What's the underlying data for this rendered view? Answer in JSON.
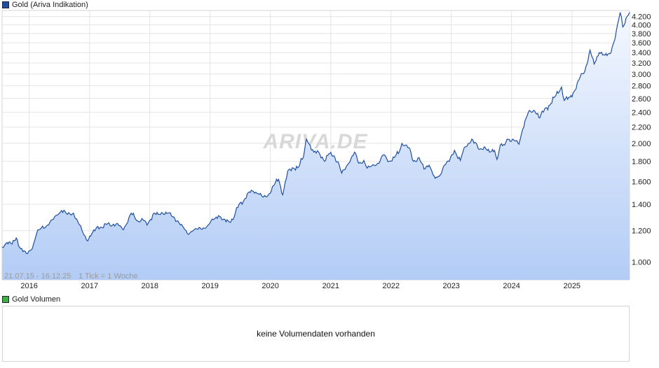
{
  "legend": {
    "price_label": "Gold (Ariva Indikation)",
    "price_color": "#1f4fa0",
    "volume_label": "Gold Volumen",
    "volume_color": "#3cb043"
  },
  "watermark": "ARIVA.DE",
  "range_info": "21.07.15 - 16.12.25",
  "tick_info": "1 Tick = 1 Woche",
  "volume_panel": {
    "message": "keine Volumendaten vorhanden"
  },
  "chart_data": {
    "type": "area",
    "scale": "log",
    "grid": true,
    "x_range": [
      "2015-07-21",
      "2025-12-16"
    ],
    "y_range": [
      0.9,
      4.35
    ],
    "y_ticks": [
      1.0,
      1.2,
      1.4,
      1.6,
      1.8,
      2.0,
      2.2,
      2.4,
      2.6,
      2.8,
      3.0,
      3.2,
      3.4,
      3.6,
      3.8,
      4.0,
      4.2
    ],
    "y_tick_labels": [
      "1.000",
      "1.200",
      "1.400",
      "1.600",
      "1.800",
      "2.000",
      "2.200",
      "2.400",
      "2.600",
      "2.800",
      "3.000",
      "3.200",
      "3.400",
      "3.600",
      "3.800",
      "4.000",
      "4.200"
    ],
    "x_ticks": [
      "2016-01-01",
      "2017-01-01",
      "2018-01-01",
      "2019-01-01",
      "2020-01-01",
      "2021-01-01",
      "2022-01-01",
      "2023-01-01",
      "2024-01-01",
      "2025-01-01"
    ],
    "x_tick_labels": [
      "2016",
      "2017",
      "2018",
      "2019",
      "2020",
      "2021",
      "2022",
      "2023",
      "2024",
      "2025"
    ],
    "series": [
      {
        "line_color": "#1f4fa0",
        "fill_top": "#f4f8ff",
        "fill_bottom": "#b3ccf5",
        "points": [
          [
            "2015-07-21",
            1.09
          ],
          [
            "2015-08-20",
            1.12
          ],
          [
            "2015-09-20",
            1.11
          ],
          [
            "2015-10-15",
            1.15
          ],
          [
            "2015-11-10",
            1.08
          ],
          [
            "2015-12-15",
            1.05
          ],
          [
            "2016-01-20",
            1.08
          ],
          [
            "2016-02-15",
            1.18
          ],
          [
            "2016-03-15",
            1.22
          ],
          [
            "2016-04-20",
            1.24
          ],
          [
            "2016-05-20",
            1.28
          ],
          [
            "2016-06-25",
            1.32
          ],
          [
            "2016-07-15",
            1.35
          ],
          [
            "2016-08-20",
            1.32
          ],
          [
            "2016-09-25",
            1.33
          ],
          [
            "2016-10-20",
            1.27
          ],
          [
            "2016-11-20",
            1.19
          ],
          [
            "2016-12-20",
            1.13
          ],
          [
            "2017-01-20",
            1.19
          ],
          [
            "2017-02-20",
            1.23
          ],
          [
            "2017-03-20",
            1.22
          ],
          [
            "2017-04-20",
            1.25
          ],
          [
            "2017-05-20",
            1.24
          ],
          [
            "2017-06-20",
            1.25
          ],
          [
            "2017-07-20",
            1.21
          ],
          [
            "2017-08-20",
            1.26
          ],
          [
            "2017-09-10",
            1.33
          ],
          [
            "2017-10-20",
            1.27
          ],
          [
            "2017-11-20",
            1.28
          ],
          [
            "2017-12-15",
            1.24
          ],
          [
            "2018-01-25",
            1.33
          ],
          [
            "2018-02-20",
            1.32
          ],
          [
            "2018-03-20",
            1.33
          ],
          [
            "2018-04-20",
            1.33
          ],
          [
            "2018-05-20",
            1.3
          ],
          [
            "2018-06-20",
            1.27
          ],
          [
            "2018-07-20",
            1.23
          ],
          [
            "2018-08-16",
            1.18
          ],
          [
            "2018-09-20",
            1.2
          ],
          [
            "2018-10-20",
            1.21
          ],
          [
            "2018-11-20",
            1.22
          ],
          [
            "2018-12-20",
            1.24
          ],
          [
            "2019-01-20",
            1.28
          ],
          [
            "2019-02-20",
            1.31
          ],
          [
            "2019-03-20",
            1.28
          ],
          [
            "2019-04-20",
            1.27
          ],
          [
            "2019-05-20",
            1.28
          ],
          [
            "2019-06-25",
            1.4
          ],
          [
            "2019-07-20",
            1.42
          ],
          [
            "2019-08-20",
            1.5
          ],
          [
            "2019-09-20",
            1.51
          ],
          [
            "2019-10-20",
            1.49
          ],
          [
            "2019-11-20",
            1.46
          ],
          [
            "2019-12-20",
            1.48
          ],
          [
            "2020-01-20",
            1.56
          ],
          [
            "2020-02-20",
            1.62
          ],
          [
            "2020-03-16",
            1.48
          ],
          [
            "2020-04-15",
            1.7
          ],
          [
            "2020-05-20",
            1.73
          ],
          [
            "2020-06-20",
            1.74
          ],
          [
            "2020-07-20",
            1.85
          ],
          [
            "2020-08-07",
            2.05
          ],
          [
            "2020-09-20",
            1.9
          ],
          [
            "2020-10-20",
            1.9
          ],
          [
            "2020-11-25",
            1.8
          ],
          [
            "2020-12-20",
            1.88
          ],
          [
            "2021-01-20",
            1.86
          ],
          [
            "2021-02-20",
            1.77
          ],
          [
            "2021-03-08",
            1.68
          ],
          [
            "2021-04-20",
            1.78
          ],
          [
            "2021-05-25",
            1.9
          ],
          [
            "2021-06-20",
            1.78
          ],
          [
            "2021-07-20",
            1.81
          ],
          [
            "2021-08-10",
            1.73
          ],
          [
            "2021-09-20",
            1.76
          ],
          [
            "2021-10-20",
            1.78
          ],
          [
            "2021-11-16",
            1.87
          ],
          [
            "2021-12-20",
            1.8
          ],
          [
            "2022-01-20",
            1.84
          ],
          [
            "2022-02-20",
            1.9
          ],
          [
            "2022-03-08",
            2.0
          ],
          [
            "2022-04-20",
            1.95
          ],
          [
            "2022-05-16",
            1.8
          ],
          [
            "2022-06-20",
            1.84
          ],
          [
            "2022-07-20",
            1.72
          ],
          [
            "2022-08-20",
            1.76
          ],
          [
            "2022-09-26",
            1.63
          ],
          [
            "2022-10-20",
            1.65
          ],
          [
            "2022-11-20",
            1.76
          ],
          [
            "2022-12-20",
            1.8
          ],
          [
            "2023-01-20",
            1.92
          ],
          [
            "2023-02-25",
            1.81
          ],
          [
            "2023-03-20",
            1.95
          ],
          [
            "2023-04-20",
            2.0
          ],
          [
            "2023-05-05",
            2.05
          ],
          [
            "2023-06-20",
            1.93
          ],
          [
            "2023-07-20",
            1.96
          ],
          [
            "2023-08-20",
            1.9
          ],
          [
            "2023-09-20",
            1.92
          ],
          [
            "2023-10-05",
            1.82
          ],
          [
            "2023-10-25",
            1.98
          ],
          [
            "2023-11-20",
            1.98
          ],
          [
            "2023-12-05",
            2.05
          ],
          [
            "2024-01-20",
            2.03
          ],
          [
            "2024-02-15",
            1.99
          ],
          [
            "2024-03-08",
            2.17
          ],
          [
            "2024-04-12",
            2.4
          ],
          [
            "2024-05-20",
            2.42
          ],
          [
            "2024-06-20",
            2.32
          ],
          [
            "2024-07-20",
            2.45
          ],
          [
            "2024-08-20",
            2.5
          ],
          [
            "2024-09-20",
            2.63
          ],
          [
            "2024-10-30",
            2.78
          ],
          [
            "2024-11-15",
            2.57
          ],
          [
            "2024-12-20",
            2.62
          ],
          [
            "2025-01-20",
            2.73
          ],
          [
            "2025-02-20",
            2.95
          ],
          [
            "2025-03-20",
            3.05
          ],
          [
            "2025-04-21",
            3.45
          ],
          [
            "2025-05-15",
            3.18
          ],
          [
            "2025-06-15",
            3.4
          ],
          [
            "2025-07-20",
            3.35
          ],
          [
            "2025-08-20",
            3.38
          ],
          [
            "2025-09-20",
            3.7
          ],
          [
            "2025-10-20",
            4.3
          ],
          [
            "2025-11-05",
            3.95
          ],
          [
            "2025-12-01",
            4.2
          ],
          [
            "2025-12-16",
            4.3
          ]
        ]
      }
    ]
  }
}
